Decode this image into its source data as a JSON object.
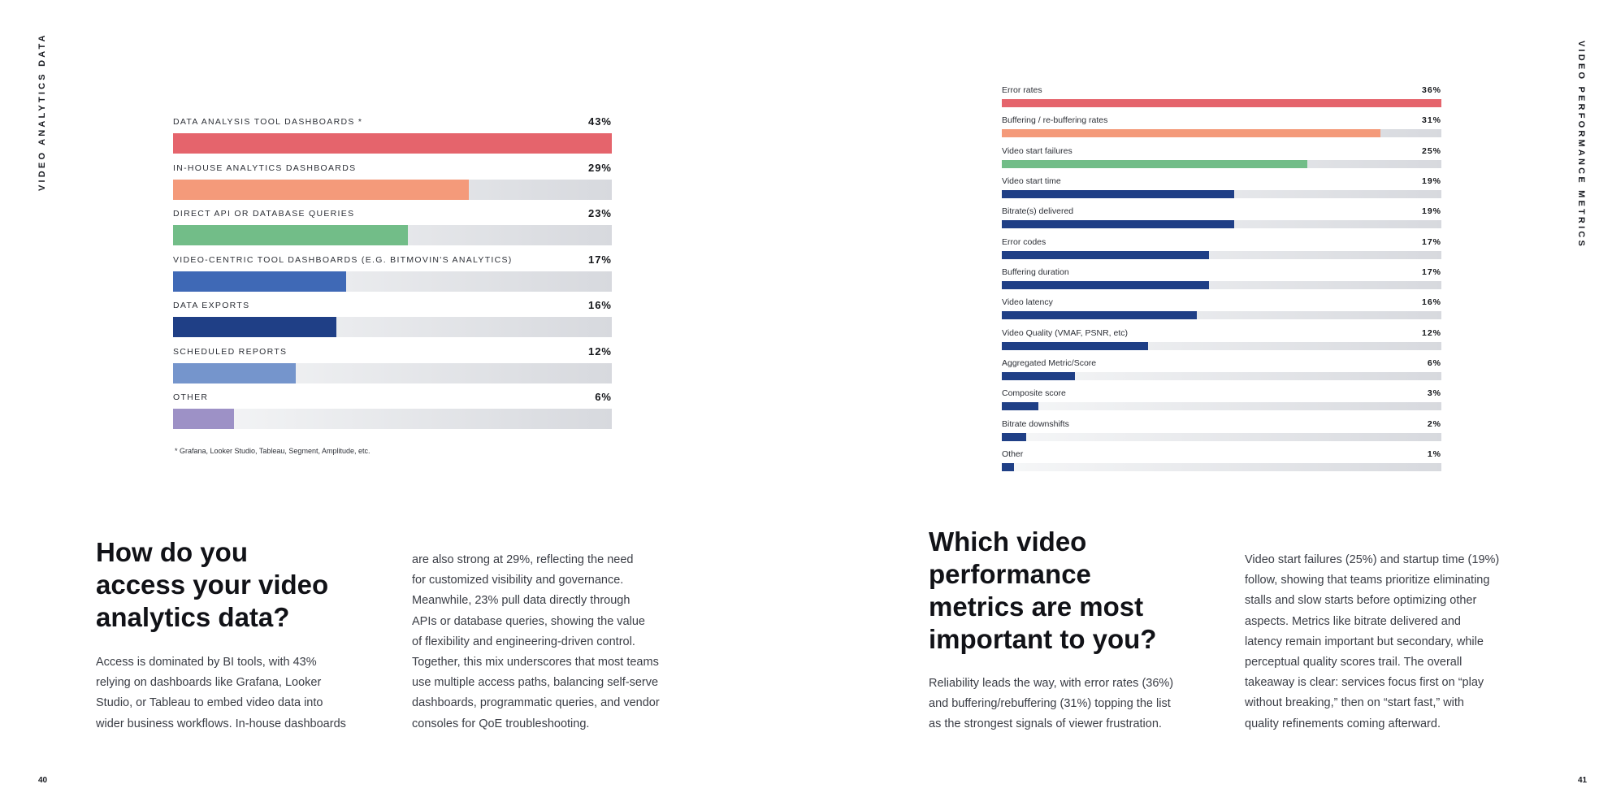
{
  "left_page": {
    "side_label": "VIDEO ANALYTICS DATA",
    "page_number": "40",
    "heading_lines": [
      "How do you",
      "access your video",
      "analytics data?"
    ],
    "col1_lines": [
      "Access is dominated by BI tools, with 43%",
      "relying on dashboards like Grafana, Looker",
      "Studio, or Tableau to embed video data into",
      "wider business workflows. In-house dashboards"
    ],
    "col2_lines": [
      "are also strong at 29%, reflecting the need",
      "for customized visibility and governance.",
      "Meanwhile, 23% pull data directly through",
      "APIs or database queries, showing the value",
      "of flexibility and engineering-driven control.",
      "Together, this mix underscores that most teams",
      "use multiple access paths, balancing self-serve",
      "dashboards, programmatic queries, and vendor",
      "consoles for QoE troubleshooting."
    ],
    "footnote": "* Grafana, Looker Studio, Tableau, Segment, Amplitude, etc."
  },
  "right_page": {
    "side_label": "VIDEO PERFORMANCE METRICS",
    "page_number": "41",
    "heading_lines": [
      "Which video",
      "performance",
      "metrics are most",
      "important to you?"
    ],
    "col1_lines": [
      "Reliability leads the way, with error rates (36%)",
      "and buffering/rebuffering (31%) topping the list",
      "as the strongest signals of viewer frustration."
    ],
    "col2_lines": [
      "Video start failures (25%) and startup time (19%)",
      "follow, showing that teams prioritize eliminating",
      "stalls and slow starts before optimizing other",
      "aspects. Metrics like bitrate delivered and",
      "latency remain important but secondary, while",
      "perceptual quality scores trail. The overall",
      "takeaway is clear: services focus first on “play",
      "without breaking,” then on “start fast,” with",
      "quality refinements coming afterward."
    ]
  },
  "chart_data": [
    {
      "type": "bar",
      "orientation": "horizontal",
      "categories": [
        "DATA ANALYSIS TOOL DASHBOARDS *",
        "IN-HOUSE ANALYTICS DASHBOARDS",
        "DIRECT API OR DATABASE QUERIES",
        "VIDEO-CENTRIC TOOL DASHBOARDS (E.G. BITMOVIN'S ANALYTICS)",
        "DATA EXPORTS",
        "SCHEDULED REPORTS",
        "OTHER"
      ],
      "values": [
        43,
        29,
        23,
        17,
        16,
        12,
        6
      ],
      "value_labels": [
        "43%",
        "29%",
        "23%",
        "17%",
        "16%",
        "12%",
        "6%"
      ],
      "colors": [
        "#e5646c",
        "#f49a7a",
        "#72bd88",
        "#3f69b6",
        "#1f3f86",
        "#7595cc",
        "#9d91c6"
      ],
      "xlim": [
        0,
        43
      ],
      "grid": false
    },
    {
      "type": "bar",
      "orientation": "horizontal",
      "categories": [
        "Error rates",
        "Buffering / re-buffering rates",
        "Video start failures",
        "Video start time",
        "Bitrate(s) delivered",
        "Error codes",
        "Buffering duration",
        "Video latency",
        "Video Quality (VMAF, PSNR, etc)",
        "Aggregated Metric/Score",
        "Composite score",
        "Bitrate downshifts",
        "Other"
      ],
      "values": [
        36,
        31,
        25,
        19,
        19,
        17,
        17,
        16,
        12,
        6,
        3,
        2,
        1
      ],
      "value_labels": [
        "36%",
        "31%",
        "25%",
        "19%",
        "19%",
        "17%",
        "17%",
        "16%",
        "12%",
        "6%",
        "3%",
        "2%",
        "1%"
      ],
      "colors": [
        "#e5646c",
        "#f49a7a",
        "#72bd88",
        "#1f3f86",
        "#1f3f86",
        "#1f3f86",
        "#1f3f86",
        "#1f3f86",
        "#1f3f86",
        "#1f3f86",
        "#1f3f86",
        "#1f3f86",
        "#1f3f86"
      ],
      "xlim": [
        0,
        36
      ],
      "grid": false
    }
  ]
}
